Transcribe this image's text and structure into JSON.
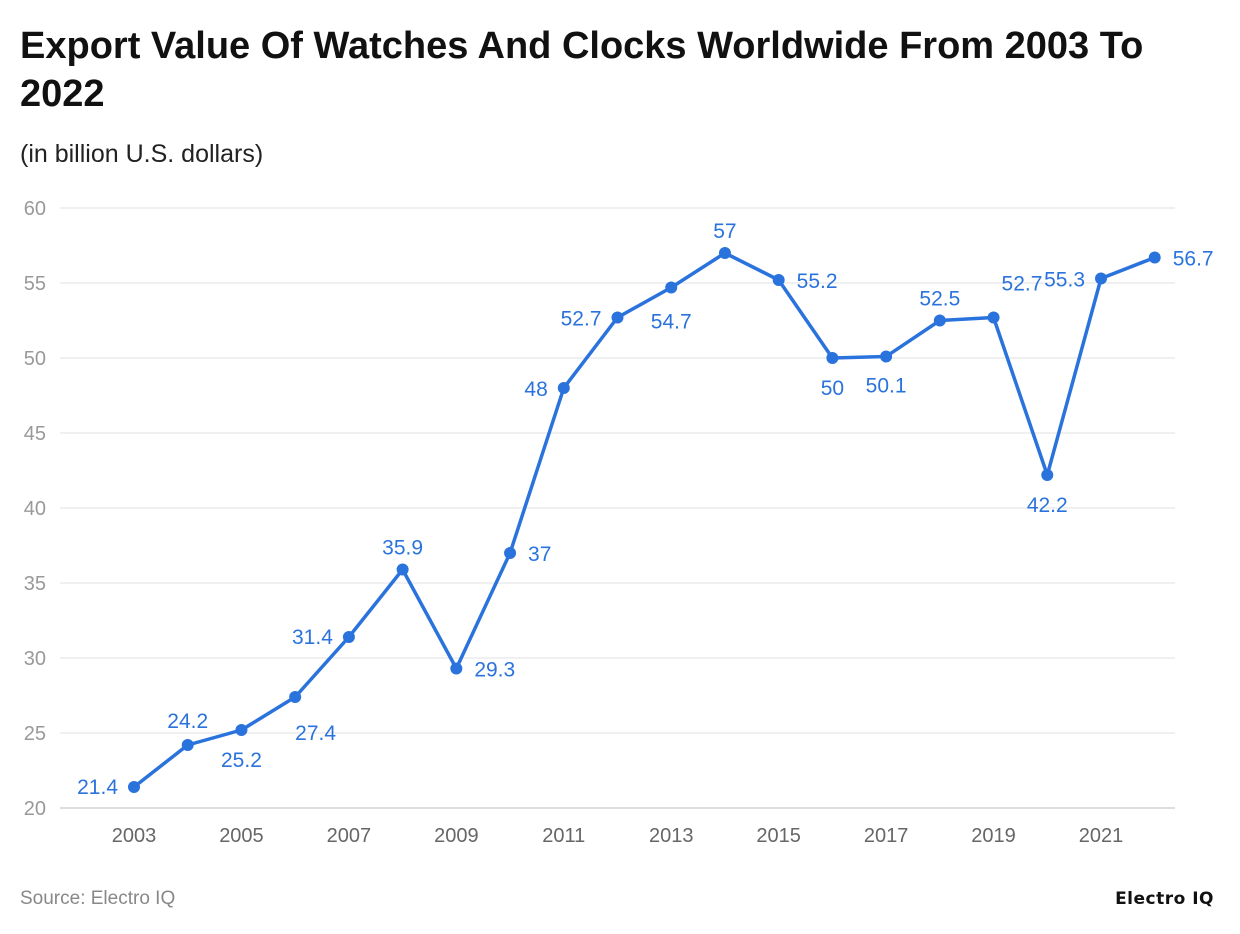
{
  "chart_data": {
    "type": "line",
    "title": "Export Value Of Watches And Clocks Worldwide From 2003 To 2022",
    "subtitle": "(in billion U.S. dollars)",
    "x": [
      2003,
      2004,
      2005,
      2006,
      2007,
      2008,
      2009,
      2010,
      2011,
      2012,
      2013,
      2014,
      2015,
      2016,
      2017,
      2018,
      2019,
      2020,
      2021,
      2022
    ],
    "values": [
      21.4,
      24.2,
      25.2,
      27.4,
      31.4,
      35.9,
      29.3,
      37,
      48,
      52.7,
      54.7,
      57,
      55.2,
      50,
      50.1,
      52.5,
      52.7,
      42.2,
      55.3,
      56.7
    ],
    "x_tick_labels": [
      "2003",
      "2005",
      "2007",
      "2009",
      "2011",
      "2013",
      "2015",
      "2017",
      "2019",
      "2021"
    ],
    "y_tick_labels": [
      "20",
      "25",
      "30",
      "35",
      "40",
      "45",
      "50",
      "55",
      "60"
    ],
    "ylim": [
      20,
      60
    ],
    "grid": true,
    "line_color": "#2a73dc",
    "source": "Source: Electro IQ",
    "logo": "Electro IQ"
  }
}
